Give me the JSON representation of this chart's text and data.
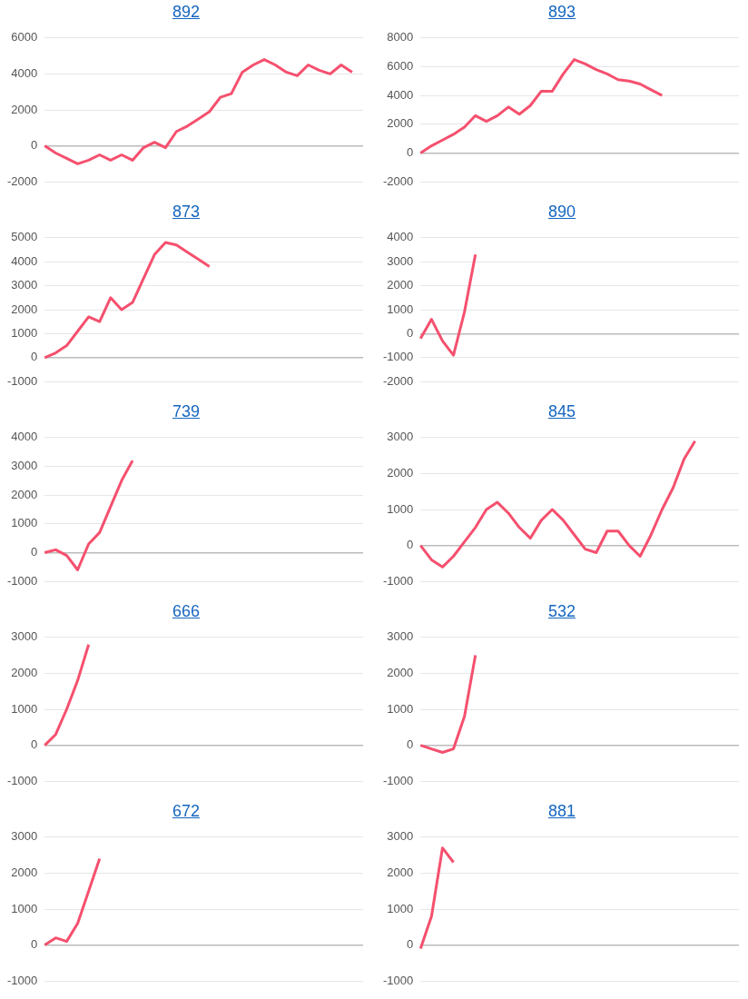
{
  "chart_data": [
    {
      "type": "line",
      "title": "892",
      "categories": [
        null,
        null,
        null,
        null,
        null,
        null,
        null,
        null,
        null,
        null,
        null,
        null,
        null,
        null,
        null,
        null,
        null,
        null,
        null,
        null,
        null,
        null,
        null,
        null,
        null,
        null,
        null,
        null,
        null,
        null
      ],
      "values": [
        0,
        -400,
        -700,
        -1000,
        -800,
        -500,
        -800,
        -500,
        -800,
        -100,
        200,
        -100,
        800,
        1100,
        1500,
        1900,
        2700,
        2900,
        4100,
        4500,
        4800,
        4500,
        4100,
        3900,
        4500,
        4200,
        4000,
        4500,
        4100,
        null
      ],
      "color": "#f5506e",
      "ylim": [
        -2000,
        6000
      ],
      "yticks": [
        -2000,
        0,
        2000,
        4000,
        6000
      ],
      "grid": "y",
      "tick_labels": "y",
      "marker": "none"
    },
    {
      "type": "line",
      "title": "893",
      "categories": [
        null,
        null,
        null,
        null,
        null,
        null,
        null,
        null,
        null,
        null,
        null,
        null,
        null,
        null,
        null,
        null,
        null,
        null,
        null,
        null,
        null,
        null,
        null,
        null,
        null,
        null,
        null,
        null,
        null,
        null
      ],
      "values": [
        0,
        500,
        900,
        1300,
        1800,
        2600,
        2200,
        2600,
        3200,
        2700,
        3300,
        4300,
        4300,
        5500,
        6500,
        6200,
        5800,
        5500,
        5100,
        5000,
        4800,
        4400,
        4000,
        null,
        null,
        null,
        null,
        null,
        null,
        null
      ],
      "color": "#f5506e",
      "ylim": [
        -2000,
        8000
      ],
      "yticks": [
        -2000,
        0,
        2000,
        4000,
        6000,
        8000
      ],
      "grid": "y",
      "tick_labels": "y",
      "marker": "none"
    },
    {
      "type": "line",
      "title": "873",
      "categories": [
        null,
        null,
        null,
        null,
        null,
        null,
        null,
        null,
        null,
        null,
        null,
        null,
        null,
        null,
        null,
        null,
        null,
        null,
        null,
        null,
        null,
        null,
        null,
        null,
        null,
        null,
        null,
        null,
        null,
        null
      ],
      "values": [
        0,
        200,
        500,
        1100,
        1700,
        1500,
        2500,
        2000,
        2300,
        3300,
        4300,
        4800,
        4700,
        4400,
        4100,
        3800,
        null,
        null,
        null,
        null,
        null,
        null,
        null,
        null,
        null,
        null,
        null,
        null,
        null,
        null
      ],
      "color": "#f5506e",
      "ylim": [
        -1000,
        5000
      ],
      "yticks": [
        -1000,
        0,
        1000,
        2000,
        3000,
        4000,
        5000
      ],
      "grid": "y",
      "tick_labels": "y",
      "marker": "none"
    },
    {
      "type": "line",
      "title": "890",
      "categories": [
        null,
        null,
        null,
        null,
        null,
        null,
        null,
        null,
        null,
        null,
        null,
        null,
        null,
        null,
        null,
        null,
        null,
        null,
        null,
        null,
        null,
        null,
        null,
        null,
        null,
        null,
        null,
        null,
        null,
        null
      ],
      "values": [
        -200,
        600,
        -300,
        -900,
        900,
        3300,
        null,
        null,
        null,
        null,
        null,
        null,
        null,
        null,
        null,
        null,
        null,
        null,
        null,
        null,
        null,
        null,
        null,
        null,
        null,
        null,
        null,
        null,
        null,
        null
      ],
      "color": "#f5506e",
      "ylim": [
        -2000,
        4000
      ],
      "yticks": [
        -2000,
        -1000,
        0,
        1000,
        2000,
        3000,
        4000
      ],
      "grid": "y",
      "tick_labels": "y",
      "marker": "none"
    },
    {
      "type": "line",
      "title": "739",
      "categories": [
        null,
        null,
        null,
        null,
        null,
        null,
        null,
        null,
        null,
        null,
        null,
        null,
        null,
        null,
        null,
        null,
        null,
        null,
        null,
        null,
        null,
        null,
        null,
        null,
        null,
        null,
        null,
        null,
        null,
        null
      ],
      "values": [
        0,
        100,
        -100,
        -600,
        300,
        700,
        1600,
        2500,
        3200,
        null,
        null,
        null,
        null,
        null,
        null,
        null,
        null,
        null,
        null,
        null,
        null,
        null,
        null,
        null,
        null,
        null,
        null,
        null,
        null,
        null
      ],
      "color": "#f5506e",
      "ylim": [
        -1000,
        4000
      ],
      "yticks": [
        -1000,
        0,
        1000,
        2000,
        3000,
        4000
      ],
      "grid": "y",
      "tick_labels": "y",
      "marker": "none"
    },
    {
      "type": "line",
      "title": "845",
      "categories": [
        null,
        null,
        null,
        null,
        null,
        null,
        null,
        null,
        null,
        null,
        null,
        null,
        null,
        null,
        null,
        null,
        null,
        null,
        null,
        null,
        null,
        null,
        null,
        null,
        null,
        null,
        null,
        null,
        null,
        null
      ],
      "values": [
        0,
        -400,
        -600,
        -300,
        100,
        500,
        1000,
        1200,
        900,
        500,
        200,
        700,
        1000,
        700,
        300,
        -100,
        -200,
        400,
        400,
        0,
        -300,
        300,
        1000,
        1600,
        2400,
        2900,
        null,
        null,
        null,
        null
      ],
      "color": "#f5506e",
      "ylim": [
        -1000,
        3000
      ],
      "yticks": [
        -1000,
        0,
        1000,
        2000,
        3000
      ],
      "grid": "y",
      "tick_labels": "y",
      "marker": "none"
    },
    {
      "type": "line",
      "title": "666",
      "categories": [
        null,
        null,
        null,
        null,
        null,
        null,
        null,
        null,
        null,
        null,
        null,
        null,
        null,
        null,
        null,
        null,
        null,
        null,
        null,
        null,
        null,
        null,
        null,
        null,
        null,
        null,
        null,
        null,
        null,
        null
      ],
      "values": [
        0,
        300,
        1000,
        1800,
        2800,
        null,
        null,
        null,
        null,
        null,
        null,
        null,
        null,
        null,
        null,
        null,
        null,
        null,
        null,
        null,
        null,
        null,
        null,
        null,
        null,
        null,
        null,
        null,
        null,
        null
      ],
      "color": "#f5506e",
      "ylim": [
        -1000,
        3000
      ],
      "yticks": [
        -1000,
        0,
        1000,
        2000,
        3000
      ],
      "grid": "y",
      "tick_labels": "y",
      "marker": "none"
    },
    {
      "type": "line",
      "title": "532",
      "categories": [
        null,
        null,
        null,
        null,
        null,
        null,
        null,
        null,
        null,
        null,
        null,
        null,
        null,
        null,
        null,
        null,
        null,
        null,
        null,
        null,
        null,
        null,
        null,
        null,
        null,
        null,
        null,
        null,
        null,
        null
      ],
      "values": [
        0,
        -100,
        -200,
        -100,
        800,
        2500,
        null,
        null,
        null,
        null,
        null,
        null,
        null,
        null,
        null,
        null,
        null,
        null,
        null,
        null,
        null,
        null,
        null,
        null,
        null,
        null,
        null,
        null,
        null,
        null
      ],
      "color": "#f5506e",
      "ylim": [
        -1000,
        3000
      ],
      "yticks": [
        -1000,
        0,
        1000,
        2000,
        3000
      ],
      "grid": "y",
      "tick_labels": "y",
      "marker": "none"
    },
    {
      "type": "line",
      "title": "672",
      "categories": [
        null,
        null,
        null,
        null,
        null,
        null,
        null,
        null,
        null,
        null,
        null,
        null,
        null,
        null,
        null,
        null,
        null,
        null,
        null,
        null,
        null,
        null,
        null,
        null,
        null,
        null,
        null,
        null,
        null,
        null
      ],
      "values": [
        0,
        200,
        100,
        600,
        1500,
        2400,
        null,
        null,
        null,
        null,
        null,
        null,
        null,
        null,
        null,
        null,
        null,
        null,
        null,
        null,
        null,
        null,
        null,
        null,
        null,
        null,
        null,
        null,
        null,
        null
      ],
      "color": "#f5506e",
      "ylim": [
        -1000,
        3000
      ],
      "yticks": [
        -1000,
        0,
        1000,
        2000,
        3000
      ],
      "grid": "y",
      "tick_labels": "y",
      "marker": "none"
    },
    {
      "type": "line",
      "title": "881",
      "categories": [
        null,
        null,
        null,
        null,
        null,
        null,
        null,
        null,
        null,
        null,
        null,
        null,
        null,
        null,
        null,
        null,
        null,
        null,
        null,
        null,
        null,
        null,
        null,
        null,
        null,
        null,
        null,
        null,
        null,
        null
      ],
      "values": [
        -100,
        800,
        2700,
        2300,
        null,
        null,
        null,
        null,
        null,
        null,
        null,
        null,
        null,
        null,
        null,
        null,
        null,
        null,
        null,
        null,
        null,
        null,
        null,
        null,
        null,
        null,
        null,
        null,
        null,
        null
      ],
      "color": "#f5506e",
      "ylim": [
        -1000,
        3000
      ],
      "yticks": [
        -1000,
        0,
        1000,
        2000,
        3000
      ],
      "grid": "y",
      "tick_labels": "y",
      "marker": "none"
    }
  ]
}
